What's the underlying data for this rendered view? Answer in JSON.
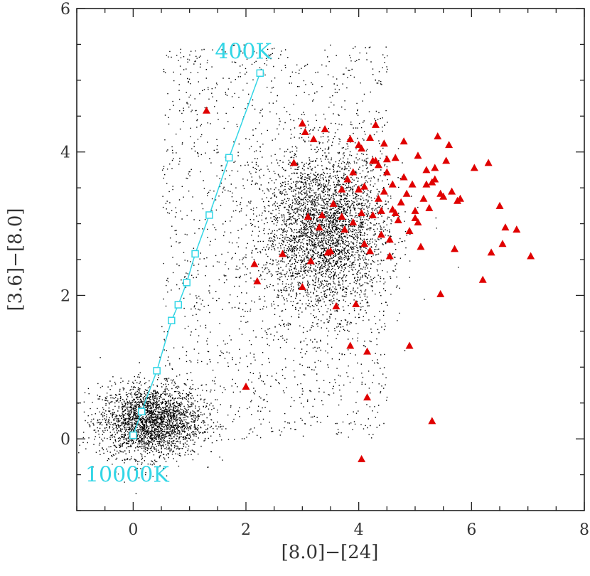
{
  "chart_data": {
    "type": "scatter",
    "title": "",
    "xlabel": "[8.0]−[24]",
    "ylabel": "[3.6]−[8.0]",
    "xlim": [
      -1.0,
      8.0
    ],
    "ylim": [
      -1.0,
      6.0
    ],
    "xticks": [
      0,
      2,
      4,
      6,
      8
    ],
    "yticks": [
      0,
      2,
      4,
      6
    ],
    "colors": {
      "background_points": "#000000",
      "triangles": "#e00000",
      "track": "#33d6e6"
    },
    "background_clusters": [
      {
        "name": "cluster-near-origin",
        "center": [
          0.3,
          0.25
        ],
        "spread": [
          0.45,
          0.25
        ],
        "count": 2600
      },
      {
        "name": "main-cluster",
        "center": [
          3.4,
          2.9
        ],
        "spread": [
          0.55,
          0.55
        ],
        "count": 3400
      },
      {
        "name": "diffuse-background",
        "region": [
          [
            0.5,
            4.5
          ],
          [
            0.0,
            5.5
          ]
        ],
        "count": 1600
      }
    ],
    "series": [
      {
        "name": "blackbody-track",
        "style": "line-with-squares",
        "x": [
          0.0,
          0.15,
          0.42,
          0.68,
          0.8,
          0.95,
          1.1,
          1.35,
          1.7,
          2.25
        ],
        "y": [
          0.05,
          0.38,
          0.95,
          1.65,
          1.87,
          2.18,
          2.58,
          3.12,
          3.92,
          5.1
        ]
      },
      {
        "name": "red-triangles",
        "style": "triangle",
        "x": [
          1.3,
          2.0,
          2.15,
          2.2,
          2.65,
          2.85,
          3.0,
          3.0,
          3.05,
          3.1,
          3.15,
          3.2,
          3.3,
          3.4,
          3.45,
          3.55,
          3.6,
          3.7,
          3.75,
          3.8,
          3.85,
          3.9,
          3.95,
          4.0,
          4.05,
          4.05,
          4.1,
          4.15,
          4.2,
          4.25,
          4.3,
          4.35,
          4.4,
          4.45,
          4.5,
          4.55,
          4.6,
          4.65,
          4.7,
          4.8,
          4.85,
          4.9,
          4.95,
          5.0,
          5.05,
          5.1,
          5.15,
          5.2,
          5.25,
          5.3,
          5.35,
          5.4,
          5.45,
          5.5,
          5.55,
          5.6,
          5.65,
          5.7,
          5.75,
          5.8,
          6.05,
          6.2,
          6.3,
          6.35,
          6.5,
          6.55,
          6.6,
          6.8,
          7.05,
          4.15,
          3.85,
          4.05,
          4.9,
          5.3,
          4.5,
          4.35,
          4.2,
          4.45,
          4.6,
          3.9,
          4.0,
          4.25,
          4.4,
          4.55,
          4.75,
          5.0,
          5.2,
          5.45,
          3.35,
          3.5,
          3.7,
          4.1,
          4.3,
          4.65,
          4.8,
          5.05,
          5.35
        ],
        "y": [
          4.58,
          0.73,
          2.44,
          2.2,
          2.58,
          3.85,
          4.4,
          2.12,
          4.28,
          3.1,
          2.48,
          4.18,
          2.95,
          4.32,
          2.6,
          3.28,
          1.85,
          3.48,
          2.92,
          3.62,
          4.18,
          3.72,
          1.88,
          4.1,
          3.15,
          -0.28,
          2.72,
          1.22,
          4.2,
          3.12,
          4.38,
          3.82,
          2.85,
          3.45,
          3.9,
          2.55,
          3.2,
          3.92,
          3.05,
          4.15,
          3.42,
          2.9,
          3.55,
          3.18,
          3.95,
          2.68,
          3.35,
          3.75,
          3.22,
          0.25,
          3.62,
          4.22,
          2.02,
          3.38,
          3.88,
          4.1,
          3.45,
          2.65,
          3.32,
          3.35,
          3.78,
          2.22,
          3.85,
          2.6,
          3.25,
          2.72,
          2.95,
          2.92,
          2.55,
          0.58,
          1.3,
          4.05,
          1.3,
          3.58,
          3.72,
          3.35,
          2.62,
          4.12,
          3.55,
          3.02,
          3.48,
          3.88,
          3.18,
          2.78,
          3.3,
          3.08,
          3.55,
          3.42,
          3.12,
          2.62,
          3.1,
          3.52,
          3.88,
          3.15,
          3.65,
          3.02,
          3.78
        ]
      }
    ],
    "annotations": [
      {
        "text": "400K",
        "x": 1.45,
        "y": 5.3
      },
      {
        "text": "10000K",
        "x": -0.85,
        "y": -0.6
      }
    ]
  }
}
